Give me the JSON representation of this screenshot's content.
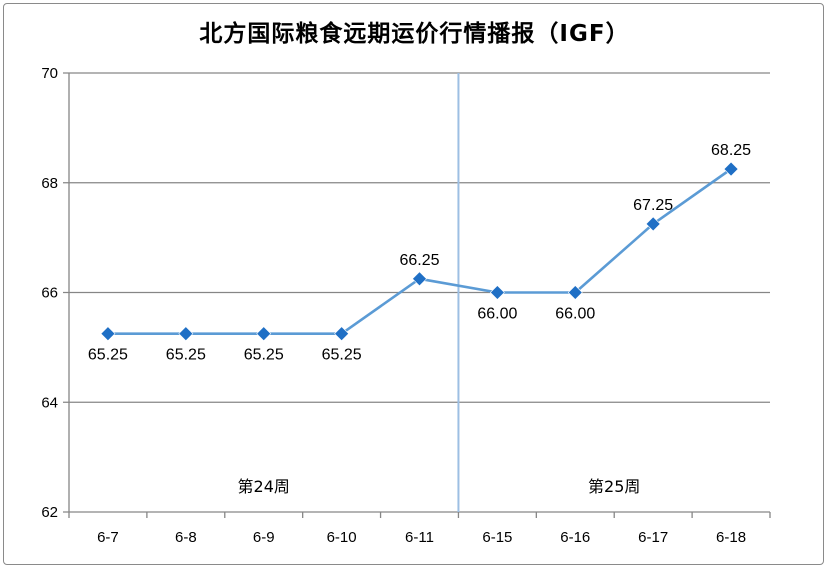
{
  "chart_data": {
    "type": "line",
    "title": "北方国际粮食远期运价行情播报（IGF）",
    "categories": [
      "6-7",
      "6-8",
      "6-9",
      "6-10",
      "6-11",
      "6-15",
      "6-16",
      "6-17",
      "6-18"
    ],
    "series": [
      {
        "values": [
          65.25,
          65.25,
          65.25,
          65.25,
          66.25,
          66.0,
          66.0,
          67.25,
          68.25
        ],
        "labels": [
          "65.25",
          "65.25",
          "65.25",
          "65.25",
          "66.25",
          "66.00",
          "66.00",
          "67.25",
          "68.25"
        ]
      }
    ],
    "ylim": [
      62,
      70
    ],
    "yticks": [
      "62",
      "64",
      "66",
      "68",
      "70"
    ],
    "grid": true,
    "annotations": [
      "第24周",
      "第25周"
    ],
    "colors": {
      "line": "#5b9bd5",
      "marker": "#1f6fc5",
      "divider": "#9dbfe3",
      "grid": "#868686"
    }
  }
}
